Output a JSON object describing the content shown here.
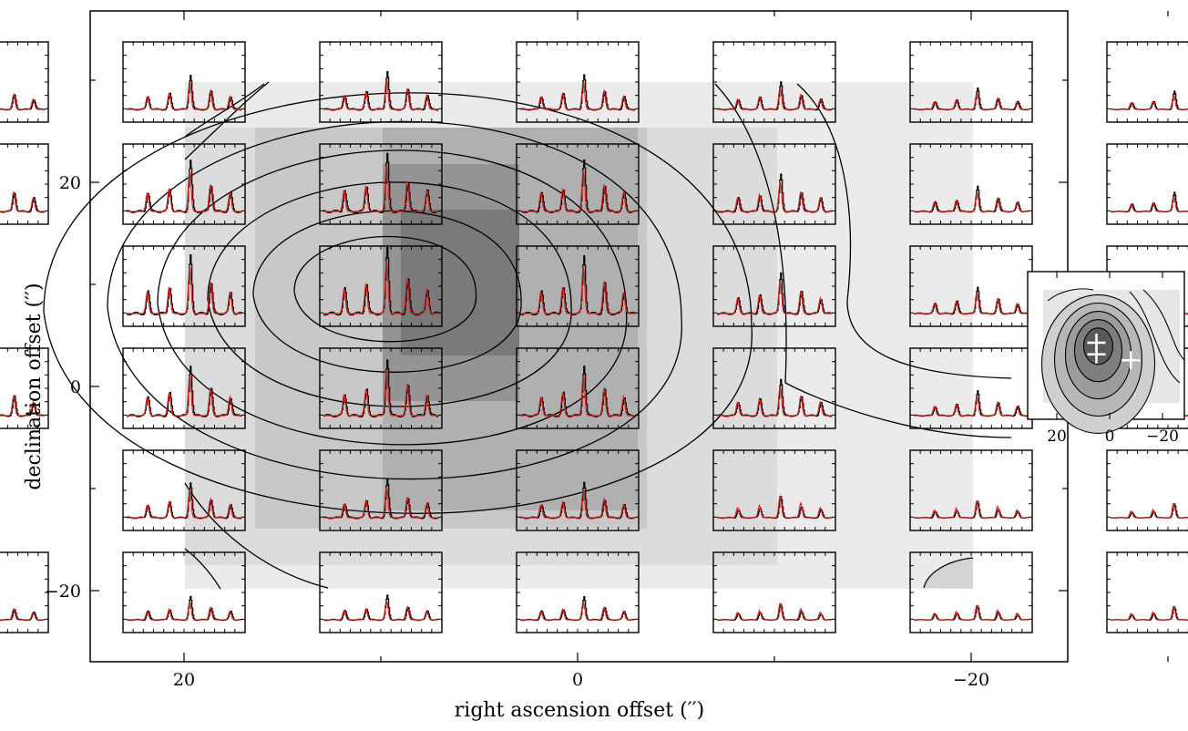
{
  "chart_data": {
    "type": "spectral map",
    "xlabel": "right ascension offset (′′)",
    "ylabel": "declination offset (′′)",
    "xlim": [
      35,
      -35
    ],
    "ylim": [
      -27,
      37
    ],
    "xticks": [
      20,
      0,
      -20
    ],
    "yticks": [
      20,
      0,
      -20
    ],
    "xtick_labels": [
      "20",
      "0",
      "−20"
    ],
    "ytick_labels": [
      "20",
      "0",
      "−20"
    ],
    "spectra_grid": {
      "ra_offsets": [
        30,
        20,
        10,
        0,
        -10,
        -20,
        -30
      ],
      "dec_offsets": [
        30,
        20,
        10,
        0,
        -10,
        -20
      ],
      "missing_cells": [
        [
          30,
          10
        ],
        [
          30,
          -10
        ]
      ],
      "series": [
        {
          "color": "#000000",
          "style": "histogram"
        },
        {
          "color": "#e0211c",
          "style": "line"
        }
      ]
    },
    "contour_levels_relative": [
      0.15,
      0.3,
      0.45,
      0.6,
      0.75,
      0.9
    ],
    "peak_offset": [
      10,
      10
    ],
    "colors": {
      "observed": "#000000",
      "model": "#e0211c",
      "grey_light": "#ebebeb",
      "grey_dark": "#7a7a7a"
    },
    "inset": {
      "xticks": [
        20,
        0,
        -20
      ],
      "xtick_labels": [
        "20",
        "0",
        "−20"
      ],
      "markers": [
        [
          5,
          5
        ],
        [
          5,
          1
        ],
        [
          -8,
          -1
        ]
      ]
    }
  }
}
